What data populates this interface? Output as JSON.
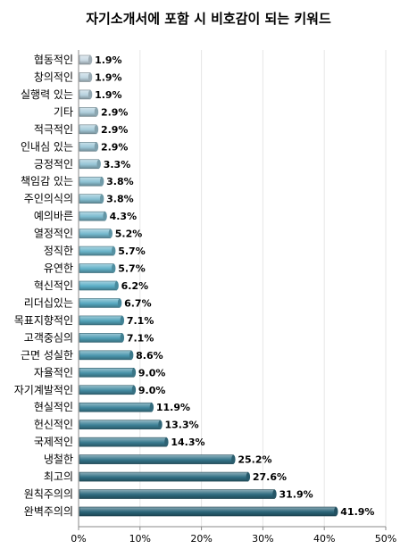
{
  "chart_data": {
    "type": "bar",
    "orientation": "horizontal",
    "title": "자기소개서에 포함 시 비호감이 되는 키워드",
    "xlabel": "",
    "ylabel": "",
    "xlim": [
      0,
      50
    ],
    "ticks": [
      "0%",
      "10%",
      "20%",
      "30%",
      "40%",
      "50%"
    ],
    "grid": true,
    "categories": [
      "협동적인",
      "창의적인",
      "실행력 있는",
      "기타",
      "적극적인",
      "인내심 있는",
      "긍정적인",
      "책임감 있는",
      "주인의식의",
      "예의바른",
      "열정적인",
      "정직한",
      "유연한",
      "혁신적인",
      "리더십있는",
      "목표지향적인",
      "고객중심의",
      "근면 성실한",
      "자율적인",
      "자기계발적인",
      "현실적인",
      "헌신적인",
      "국제적인",
      "냉철한",
      "최고의",
      "원칙주의의",
      "완벽주의의"
    ],
    "values": [
      1.9,
      1.9,
      1.9,
      2.9,
      2.9,
      2.9,
      3.3,
      3.8,
      3.8,
      4.3,
      5.2,
      5.7,
      5.7,
      6.2,
      6.7,
      7.1,
      7.1,
      8.6,
      9.0,
      9.0,
      11.9,
      13.3,
      14.3,
      25.2,
      27.6,
      31.9,
      41.9
    ],
    "value_labels": [
      "1.9%",
      "1.9%",
      "1.9%",
      "2.9%",
      "2.9%",
      "2.9%",
      "3.3%",
      "3.8%",
      "3.8%",
      "4.3%",
      "5.2%",
      "5.7%",
      "5.7%",
      "6.2%",
      "6.7%",
      "7.1%",
      "7.1%",
      "8.6%",
      "9.0%",
      "9.0%",
      "11.9%",
      "13.3%",
      "14.3%",
      "25.2%",
      "27.6%",
      "31.9%",
      "41.9%"
    ],
    "colors": {
      "light": "#c9d9e3",
      "mid": "#5aaec6",
      "dark": "#2a6478",
      "axis": "#8a8a8a",
      "grid": "#e6e6e6"
    }
  }
}
